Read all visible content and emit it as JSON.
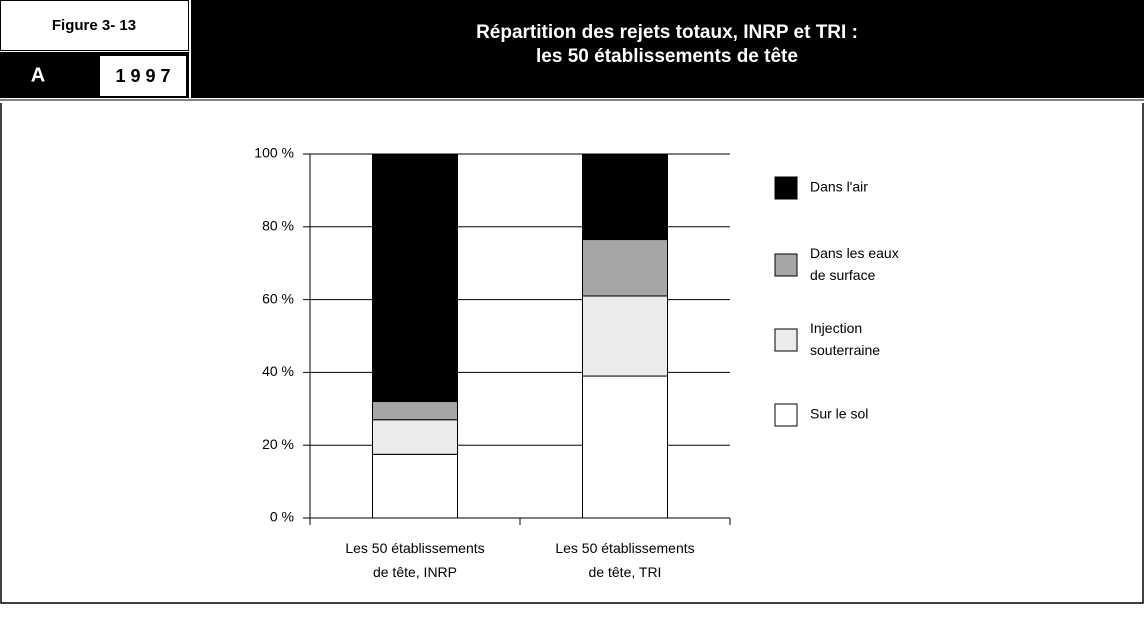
{
  "header": {
    "figure": "Figure 3- 13",
    "letter": "A",
    "year": "1 9 9 7"
  },
  "chart_data": {
    "type": "stacked_bar",
    "title": "Répartition des rejets totaux, INRP et TRI :\nles 50 établissements de tête",
    "categories": [
      "Les 50 établissements\nde tête, INRP",
      "Les 50 établissements\nde tête, TRI"
    ],
    "series": [
      {
        "name": "Sur le sol",
        "color": "#ffffff",
        "values": [
          17.5,
          39
        ]
      },
      {
        "name": "Injection\nsouterraine",
        "color": "#ebebeb",
        "values": [
          9.5,
          22
        ]
      },
      {
        "name": "Dans les eaux\nde surface",
        "color": "#a6a6a6",
        "values": [
          5,
          15.5
        ]
      },
      {
        "name": "Dans l'air",
        "color": "#000000",
        "values": [
          68,
          23.5
        ]
      }
    ],
    "ylim": [
      0,
      100
    ],
    "yticks": [
      {
        "value": 0,
        "label": "0 %"
      },
      {
        "value": 20,
        "label": "20 %"
      },
      {
        "value": 40,
        "label": "40 %"
      },
      {
        "value": 60,
        "label": "60 %"
      },
      {
        "value": 80,
        "label": "80 %"
      },
      {
        "value": 100,
        "label": "100 %"
      }
    ],
    "grid": true,
    "legend": "right"
  }
}
